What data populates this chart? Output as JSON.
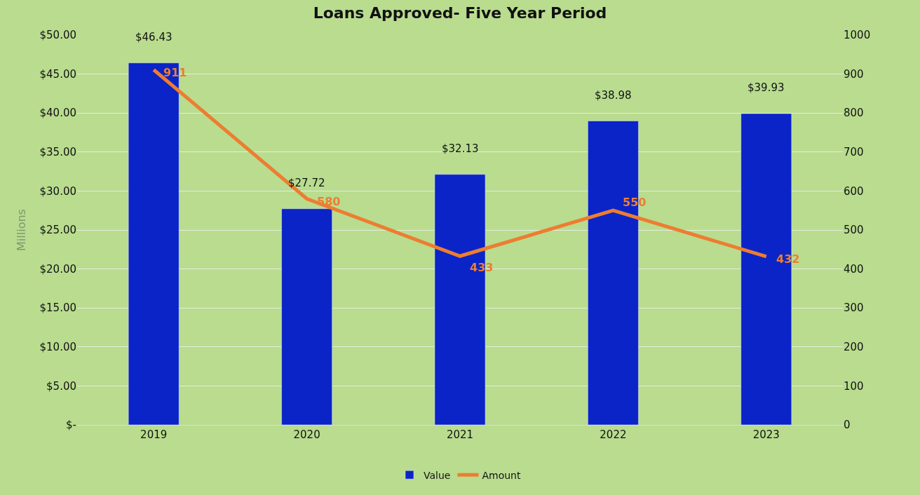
{
  "chart_data": {
    "type": "bar",
    "title": "Loans Approved- Five Year Period",
    "ylabel": "Millions",
    "categories": [
      "2019",
      "2020",
      "2021",
      "2022",
      "2023"
    ],
    "series": [
      {
        "name": "Value",
        "color": "#0a24c8",
        "values": [
          46.43,
          27.72,
          32.13,
          38.98,
          39.93
        ],
        "value_labels": [
          "$46.43",
          "$27.72",
          "$32.13",
          "$38.98",
          "$39.93"
        ]
      },
      {
        "name": "Amount",
        "type": "line",
        "axis": "y2",
        "color": "#ed7d31",
        "values": [
          911,
          580,
          433,
          550,
          432
        ],
        "value_labels": [
          "911",
          "580",
          "433",
          "550",
          "432"
        ]
      }
    ],
    "ylim": [
      0,
      50
    ],
    "yticks": [
      {
        "value": 0,
        "label": "$-"
      },
      {
        "value": 5,
        "label": "$5.00"
      },
      {
        "value": 10,
        "label": "$10.00"
      },
      {
        "value": 15,
        "label": "$15.00"
      },
      {
        "value": 20,
        "label": "$20.00"
      },
      {
        "value": 25,
        "label": "$25.00"
      },
      {
        "value": 30,
        "label": "$30.00"
      },
      {
        "value": 35,
        "label": "$35.00"
      },
      {
        "value": 40,
        "label": "$40.00"
      },
      {
        "value": 45,
        "label": "$45.00"
      },
      {
        "value": 50,
        "label": "$50.00"
      }
    ],
    "y2lim": [
      0,
      1000
    ],
    "y2ticks": [
      0,
      100,
      200,
      300,
      400,
      500,
      600,
      700,
      800,
      900,
      1000
    ],
    "grid": "y",
    "legend": "bottom",
    "marker": "none",
    "line_style": "solid"
  }
}
